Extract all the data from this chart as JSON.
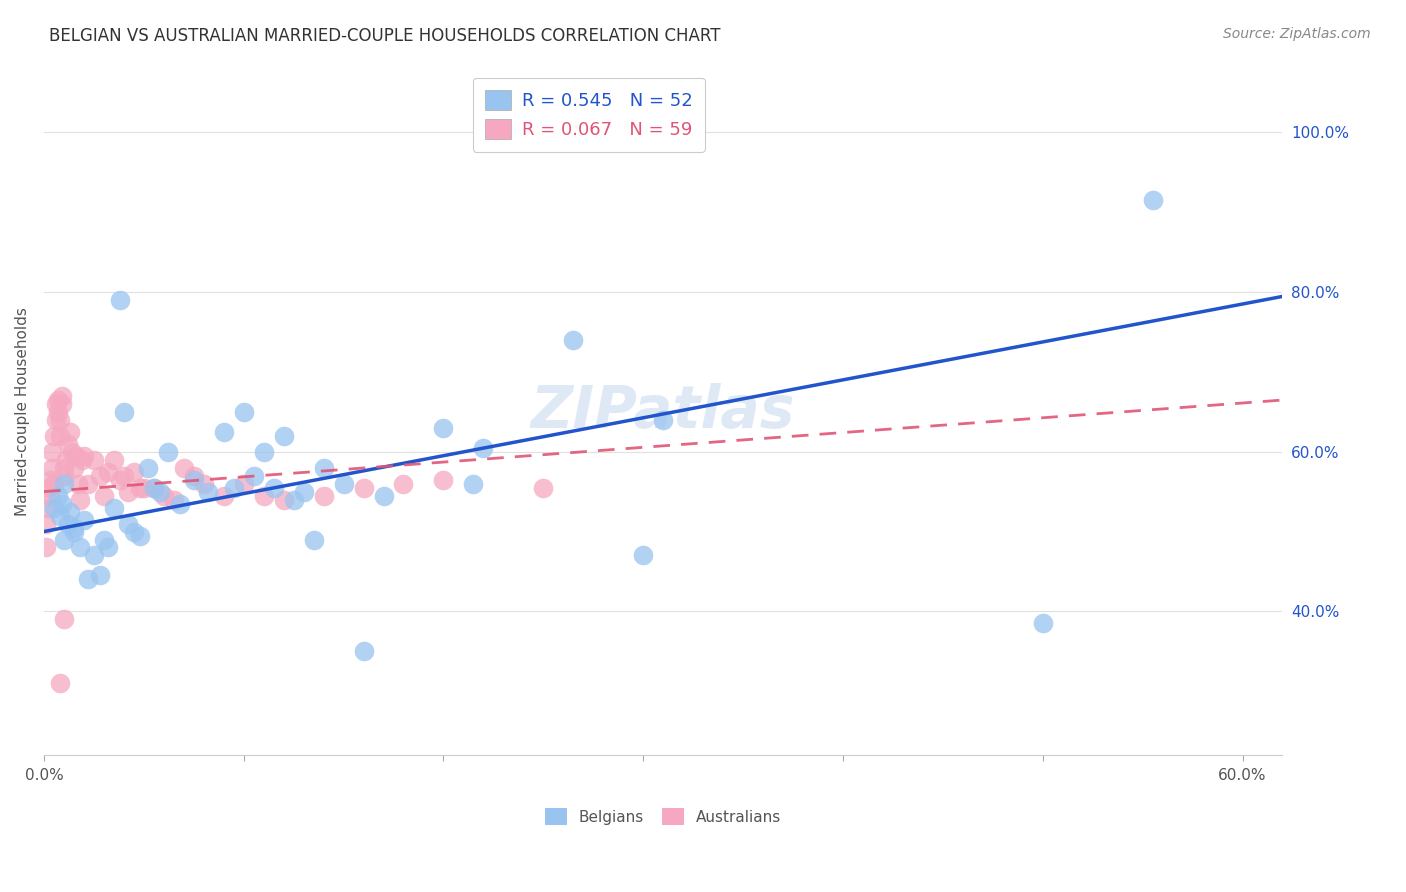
{
  "title": "BELGIAN VS AUSTRALIAN MARRIED-COUPLE HOUSEHOLDS CORRELATION CHART",
  "source": "Source: ZipAtlas.com",
  "ylabel": "Married-couple Households",
  "xlim": [
    0.0,
    0.62
  ],
  "ylim": [
    0.22,
    1.08
  ],
  "xticks": [
    0.0,
    0.1,
    0.2,
    0.3,
    0.4,
    0.5,
    0.6
  ],
  "ytick_positions": [
    0.4,
    0.6,
    0.8,
    1.0
  ],
  "background_color": "#ffffff",
  "grid_color": "#e0e0e0",
  "watermark": "ZIPatlas",
  "belgian_color": "#99c4f0",
  "australian_color": "#f5a8c0",
  "belgian_line_color": "#2255cc",
  "australian_line_color": "#e05575",
  "legend_belgian_label": "R = 0.545   N = 52",
  "legend_australian_label": "R = 0.067   N = 59",
  "belgian_x": [
    0.005,
    0.007,
    0.008,
    0.009,
    0.01,
    0.01,
    0.012,
    0.013,
    0.015,
    0.015,
    0.018,
    0.02,
    0.022,
    0.025,
    0.028,
    0.03,
    0.032,
    0.035,
    0.038,
    0.04,
    0.042,
    0.045,
    0.048,
    0.052,
    0.055,
    0.058,
    0.062,
    0.068,
    0.075,
    0.082,
    0.09,
    0.095,
    0.1,
    0.105,
    0.11,
    0.115,
    0.12,
    0.125,
    0.13,
    0.135,
    0.14,
    0.15,
    0.16,
    0.17,
    0.2,
    0.215,
    0.22,
    0.265,
    0.3,
    0.31,
    0.5,
    0.555
  ],
  "belgian_y": [
    0.53,
    0.545,
    0.52,
    0.535,
    0.49,
    0.56,
    0.51,
    0.525,
    0.5,
    0.505,
    0.48,
    0.515,
    0.44,
    0.47,
    0.445,
    0.49,
    0.48,
    0.53,
    0.79,
    0.65,
    0.51,
    0.5,
    0.495,
    0.58,
    0.555,
    0.55,
    0.6,
    0.535,
    0.565,
    0.55,
    0.625,
    0.555,
    0.65,
    0.57,
    0.6,
    0.555,
    0.62,
    0.54,
    0.55,
    0.49,
    0.58,
    0.56,
    0.35,
    0.545,
    0.63,
    0.56,
    0.605,
    0.74,
    0.47,
    0.64,
    0.385,
    0.915
  ],
  "australian_x": [
    0.001,
    0.001,
    0.002,
    0.002,
    0.003,
    0.003,
    0.004,
    0.004,
    0.005,
    0.005,
    0.006,
    0.006,
    0.007,
    0.007,
    0.008,
    0.008,
    0.009,
    0.009,
    0.01,
    0.01,
    0.011,
    0.012,
    0.013,
    0.014,
    0.015,
    0.016,
    0.017,
    0.018,
    0.019,
    0.02,
    0.022,
    0.025,
    0.028,
    0.03,
    0.032,
    0.035,
    0.038,
    0.04,
    0.042,
    0.045,
    0.048,
    0.05,
    0.055,
    0.06,
    0.065,
    0.07,
    0.075,
    0.08,
    0.09,
    0.1,
    0.11,
    0.12,
    0.14,
    0.16,
    0.18,
    0.2,
    0.25,
    0.01,
    0.008
  ],
  "australian_y": [
    0.51,
    0.48,
    0.53,
    0.555,
    0.565,
    0.545,
    0.58,
    0.6,
    0.62,
    0.56,
    0.64,
    0.66,
    0.665,
    0.65,
    0.64,
    0.62,
    0.66,
    0.67,
    0.57,
    0.58,
    0.59,
    0.61,
    0.625,
    0.6,
    0.58,
    0.595,
    0.56,
    0.54,
    0.59,
    0.595,
    0.56,
    0.59,
    0.57,
    0.545,
    0.575,
    0.59,
    0.565,
    0.57,
    0.55,
    0.575,
    0.555,
    0.555,
    0.555,
    0.545,
    0.54,
    0.58,
    0.57,
    0.56,
    0.545,
    0.56,
    0.545,
    0.54,
    0.545,
    0.555,
    0.56,
    0.565,
    0.555,
    0.39,
    0.31
  ],
  "title_fontsize": 12,
  "label_fontsize": 11,
  "tick_fontsize": 11,
  "legend_fontsize": 13,
  "source_fontsize": 10
}
